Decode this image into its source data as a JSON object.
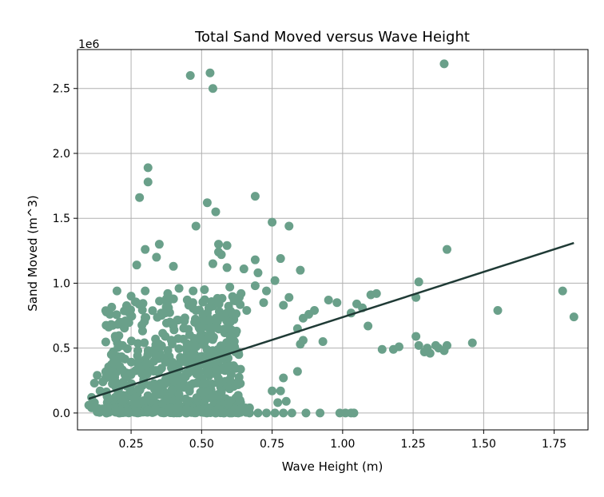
{
  "chart_data": {
    "type": "scatter",
    "title": "Total Sand Moved versus Wave Height",
    "xlabel": "Wave Height (m)",
    "ylabel": "Sand Moved (m^3)",
    "y_offset_label": "1e6",
    "xlim": [
      0.06,
      1.87
    ],
    "ylim": [
      -0.13,
      2.8
    ],
    "x_ticks": [
      0.25,
      0.5,
      0.75,
      1.0,
      1.25,
      1.5,
      1.75
    ],
    "x_tick_labels": [
      "0.25",
      "0.50",
      "0.75",
      "1.00",
      "1.25",
      "1.50",
      "1.75"
    ],
    "y_ticks": [
      0.0,
      0.5,
      1.0,
      1.5,
      2.0,
      2.5
    ],
    "y_tick_labels": [
      "0.0",
      "0.5",
      "1.0",
      "1.5",
      "2.0",
      "2.5"
    ],
    "grid": true,
    "marker_color": "#6aa08a",
    "trend_color": "#1f3a35",
    "trendline": {
      "x": [
        0.1,
        1.82
      ],
      "y": [
        0.11,
        1.31
      ]
    },
    "series": [
      {
        "points": [
          [
            0.46,
            2.6
          ],
          [
            0.53,
            2.62
          ],
          [
            0.54,
            2.5
          ],
          [
            1.36,
            2.69
          ],
          [
            0.31,
            1.89
          ],
          [
            0.31,
            1.78
          ],
          [
            0.28,
            1.66
          ],
          [
            0.69,
            1.67
          ],
          [
            0.52,
            1.62
          ],
          [
            0.55,
            1.55
          ],
          [
            0.48,
            1.44
          ],
          [
            0.75,
            1.47
          ],
          [
            0.81,
            1.44
          ],
          [
            0.56,
            1.3
          ],
          [
            0.59,
            1.29
          ],
          [
            0.35,
            1.3
          ],
          [
            0.3,
            1.26
          ],
          [
            0.56,
            1.24
          ],
          [
            0.34,
            1.2
          ],
          [
            0.57,
            1.22
          ],
          [
            0.78,
            1.19
          ],
          [
            0.69,
            1.18
          ],
          [
            0.54,
            1.15
          ],
          [
            0.27,
            1.14
          ],
          [
            0.59,
            1.12
          ],
          [
            0.4,
            1.13
          ],
          [
            0.65,
            1.11
          ],
          [
            1.37,
            1.26
          ],
          [
            0.7,
            1.08
          ],
          [
            0.85,
            1.1
          ],
          [
            1.27,
            1.01
          ],
          [
            1.78,
            0.94
          ],
          [
            1.82,
            0.74
          ],
          [
            1.55,
            0.79
          ],
          [
            1.46,
            0.54
          ],
          [
            0.95,
            0.87
          ],
          [
            0.98,
            0.85
          ],
          [
            1.05,
            0.84
          ],
          [
            1.07,
            0.81
          ],
          [
            1.1,
            0.91
          ],
          [
            1.12,
            0.92
          ],
          [
            1.03,
            0.77
          ],
          [
            1.09,
            0.67
          ],
          [
            1.26,
            0.89
          ],
          [
            1.26,
            0.59
          ],
          [
            1.27,
            0.52
          ],
          [
            1.29,
            0.47
          ],
          [
            1.31,
            0.46
          ],
          [
            1.33,
            0.52
          ],
          [
            1.34,
            0.5
          ],
          [
            1.36,
            0.48
          ],
          [
            1.37,
            0.52
          ],
          [
            1.3,
            0.5
          ],
          [
            1.14,
            0.49
          ],
          [
            1.18,
            0.49
          ],
          [
            1.2,
            0.51
          ],
          [
            0.9,
            0.79
          ],
          [
            0.86,
            0.73
          ],
          [
            0.88,
            0.76
          ],
          [
            0.84,
            0.65
          ],
          [
            0.86,
            0.56
          ],
          [
            0.85,
            0.53
          ],
          [
            0.93,
            0.55
          ],
          [
            0.76,
            1.02
          ],
          [
            0.73,
            0.94
          ],
          [
            0.81,
            0.89
          ],
          [
            0.79,
            0.83
          ],
          [
            0.69,
            0.98
          ],
          [
            0.72,
            0.85
          ],
          [
            0.6,
            0.97
          ],
          [
            0.64,
            0.92
          ],
          [
            0.66,
            0.79
          ],
          [
            0.84,
            0.32
          ],
          [
            0.79,
            0.27
          ],
          [
            0.75,
            0.17
          ],
          [
            0.78,
            0.17
          ],
          [
            0.77,
            0.08
          ],
          [
            0.8,
            0.09
          ],
          [
            0.3,
            0.94
          ],
          [
            0.2,
            0.94
          ],
          [
            0.25,
            0.9
          ],
          [
            0.38,
            0.92
          ],
          [
            0.42,
            0.96
          ],
          [
            0.47,
            0.94
          ],
          [
            0.51,
            0.95
          ],
          [
            0.21,
            0.7
          ],
          [
            0.23,
            0.71
          ],
          [
            0.22,
            0.52
          ],
          [
            0.18,
            0.45
          ],
          [
            0.19,
            0.41
          ],
          [
            0.17,
            0.33
          ],
          [
            0.16,
            0.27
          ],
          [
            0.15,
            0.24
          ],
          [
            0.13,
            0.29
          ],
          [
            0.12,
            0.23
          ],
          [
            0.14,
            0.17
          ],
          [
            0.11,
            0.12
          ],
          [
            0.12,
            0.08
          ],
          [
            0.1,
            0.06
          ],
          [
            0.11,
            0.04
          ],
          [
            0.13,
            0.03
          ],
          [
            0.15,
            0.02
          ],
          [
            0.6,
            0.0
          ],
          [
            0.63,
            0.0
          ],
          [
            0.67,
            0.0
          ],
          [
            0.7,
            0.0
          ],
          [
            0.73,
            0.0
          ],
          [
            0.76,
            0.0
          ],
          [
            0.79,
            0.0
          ],
          [
            0.82,
            0.0
          ],
          [
            0.87,
            0.0
          ],
          [
            0.92,
            0.0
          ],
          [
            0.99,
            0.0
          ],
          [
            1.01,
            0.0
          ],
          [
            1.03,
            0.0
          ],
          [
            1.04,
            0.0
          ],
          [
            0.55,
            0.0
          ],
          [
            0.58,
            0.0
          ]
        ],
        "cloud": {
          "x_range": [
            0.16,
            0.64
          ],
          "y_range": [
            0.0,
            0.9
          ],
          "count": 620
        }
      }
    ]
  }
}
